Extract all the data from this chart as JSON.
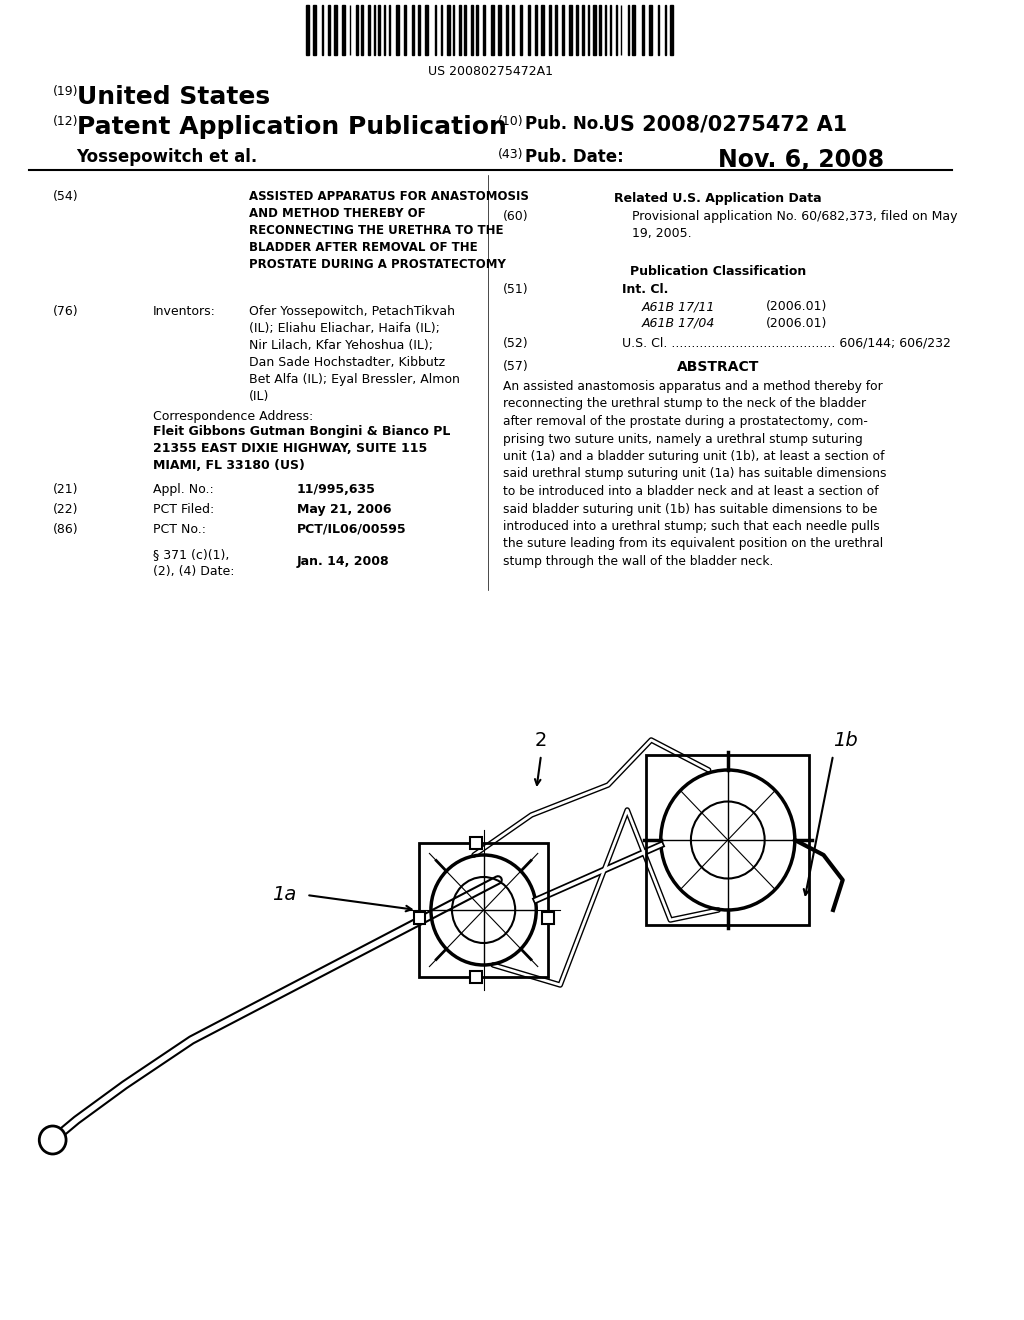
{
  "background_color": "#ffffff",
  "barcode_text": "US 20080275472A1",
  "header_left_19": "(19)",
  "header_left_19_text": "United States",
  "header_left_12": "(12)",
  "header_left_12_text": "Patent Application Publication",
  "header_left_name": "Yossepowitch et al.",
  "header_right_10_label": "(10)",
  "header_right_10_text": "Pub. No.: US 2008/0275472 A1",
  "header_right_43_label": "(43)",
  "header_right_43_text": "Pub. Date:",
  "header_right_43_date": "Nov. 6, 2008",
  "field54_label": "(54)",
  "field54_title": "ASSISTED APPARATUS FOR ANASTOMOSIS\nAND METHOD THEREBY OF\nRECONNECTING THE URETHRA TO THE\nBLADDER AFTER REMOVAL OF THE\nPROSTATE DURING A PROSTATECTOMY",
  "field76_label": "(76)",
  "field76_title": "Inventors:",
  "field76_text": "Ofer Yossepowitch, PetachTikvah\n(IL); Eliahu Eliachar, Haifa (IL);\nNir Lilach, Kfar Yehoshua (IL);\nDan Sade Hochstadter, Kibbutz\nBet Alfa (IL); Eyal Bressler, Almon\n(IL)",
  "corr_label": "Correspondence Address:",
  "corr_text": "Fleit Gibbons Gutman Bongini & Bianco PL\n21355 EAST DIXIE HIGHWAY, SUITE 115\nMIAMI, FL 33180 (US)",
  "field21_label": "(21)",
  "field21_title": "Appl. No.:",
  "field21_text": "11/995,635",
  "field22_label": "(22)",
  "field22_title": "PCT Filed:",
  "field22_text": "May 21, 2006",
  "field86_label": "(86)",
  "field86_title": "PCT No.:",
  "field86_text": "PCT/IL06/00595",
  "field371_title": "§ 371 (c)(1),\n(2), (4) Date:",
  "field371_text": "Jan. 14, 2008",
  "related_title": "Related U.S. Application Data",
  "field60_label": "(60)",
  "field60_text": "Provisional application No. 60/682,373, filed on May\n19, 2005.",
  "pubclass_title": "Publication Classification",
  "field51_label": "(51)",
  "field51_title": "Int. Cl.",
  "field51_a1": "A61B 17/11",
  "field51_a1_date": "(2006.01)",
  "field51_a2": "A61B 17/04",
  "field51_a2_date": "(2006.01)",
  "field52_label": "(52)",
  "field52_text": "U.S. Cl. ......................................... 606/144; 606/232",
  "field57_label": "(57)",
  "field57_title": "ABSTRACT",
  "field57_text": "An assisted anastomosis apparatus and a method thereby for\nreconnecting the urethral stump to the neck of the bladder\nafter removal of the prostate during a prostatectomy, com-\nprising two suture units, namely a urethral stump suturing\nunit (1a) and a bladder suturing unit (1b), at least a section of\nsaid urethral stump suturing unit (1a) has suitable dimensions\nto be introduced into a bladder neck and at least a section of\nsaid bladder suturing unit (1b) has suitable dimensions to be\nintroduced into a urethral stump; such that each needle pulls\nthe suture leading from its equivalent position on the urethral\nstump through the wall of the bladder neck.",
  "diagram_label_1a": "1a",
  "diagram_label_1b": "1b",
  "diagram_label_2": "2"
}
